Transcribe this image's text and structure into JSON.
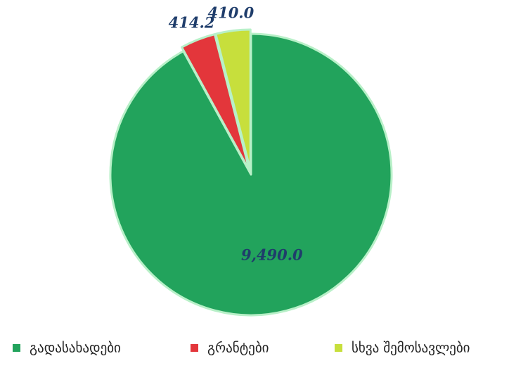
{
  "chart_data": {
    "type": "pie",
    "categories": [
      "გადასახადები",
      "გრანტები",
      "სხვა შემოსავლები"
    ],
    "values": [
      9490.0,
      414.2,
      410.0
    ],
    "value_labels": [
      "9,490.0",
      "414.2",
      "410.0"
    ],
    "colors": [
      "#22a35c",
      "#e3363b",
      "#c7df3c"
    ],
    "legend": "bottom"
  }
}
